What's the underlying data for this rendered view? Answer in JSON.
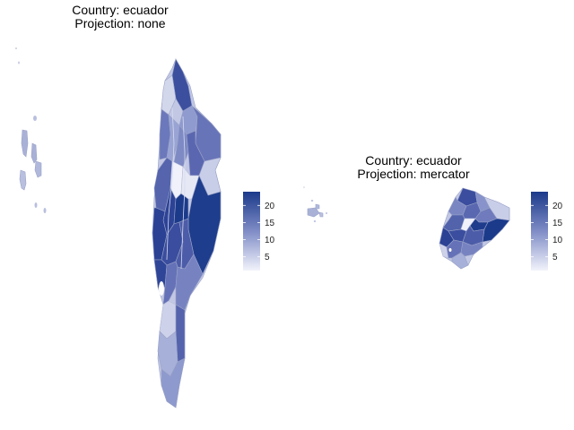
{
  "panels": [
    {
      "title_line1": "Country: ecuador",
      "title_line2": "Projection: none",
      "legend": {
        "ticks": [
          "20",
          "15",
          "10",
          "5"
        ],
        "values": [
          20,
          15,
          10,
          5
        ],
        "min": 1,
        "max": 24
      }
    },
    {
      "title_line1": "Country: ecuador",
      "title_line2": "Projection: mercator",
      "legend": {
        "ticks": [
          "20",
          "15",
          "10",
          "5"
        ],
        "values": [
          20,
          15,
          10,
          5
        ],
        "min": 1,
        "max": 24
      }
    }
  ],
  "colors": {
    "low": "#f2f3fb",
    "high": "#1b3a8a",
    "mid": "#6f7fbf",
    "border": "#9aa3c8"
  }
}
